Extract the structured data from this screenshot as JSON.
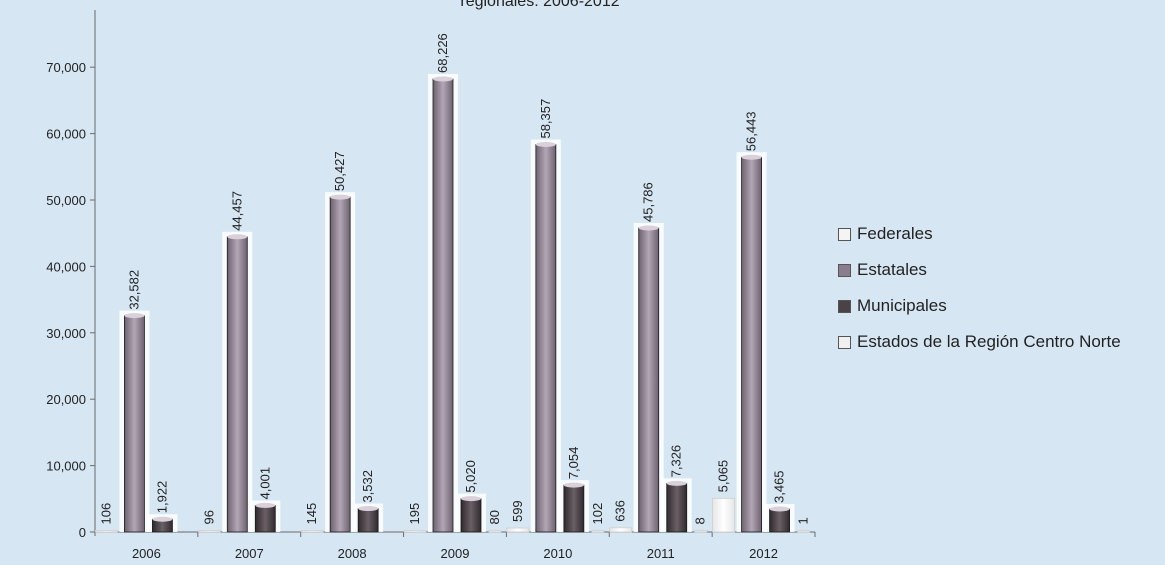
{
  "chart_data": {
    "type": "bar",
    "title": "regionales: 2006-2012",
    "categories": [
      "2006",
      "2007",
      "2008",
      "2009",
      "2010",
      "2011",
      "2012"
    ],
    "series": [
      {
        "name": "Federales",
        "values": [
          106,
          96,
          145,
          195,
          599,
          636,
          5065
        ],
        "color": "#f4f4f4"
      },
      {
        "name": "Estatales",
        "values": [
          32582,
          44457,
          50427,
          68226,
          58357,
          45786,
          56443
        ],
        "color": "#8a7d8d"
      },
      {
        "name": "Municipales",
        "values": [
          1922,
          4001,
          3532,
          5020,
          7054,
          7326,
          3465
        ],
        "color": "#4a4246"
      },
      {
        "name": "Estados de la Región Centro Norte",
        "values": [
          null,
          null,
          null,
          80,
          102,
          8,
          1
        ],
        "color": "#f0f0f0"
      }
    ],
    "data_labels": {
      "Federales": [
        "106",
        "96",
        "145",
        "195",
        "599",
        "636",
        "5,065"
      ],
      "Estatales": [
        "32,582",
        "44,457",
        "50,427",
        "68,226",
        "58,357",
        "45,786",
        "56,443"
      ],
      "Municipales": [
        "1,922",
        "4,001",
        "3,532",
        "5,020",
        "7,054",
        "7,326",
        "3,465"
      ],
      "Estados de la Región Centro Norte": [
        "",
        "",
        "",
        "80",
        "102",
        "8",
        "1"
      ]
    },
    "yticks": [
      "0",
      "10,000",
      "20,000",
      "30,000",
      "40,000",
      "50,000",
      "60,000",
      "70,000"
    ],
    "ylim": [
      0,
      75000
    ],
    "legend_position": "right"
  }
}
